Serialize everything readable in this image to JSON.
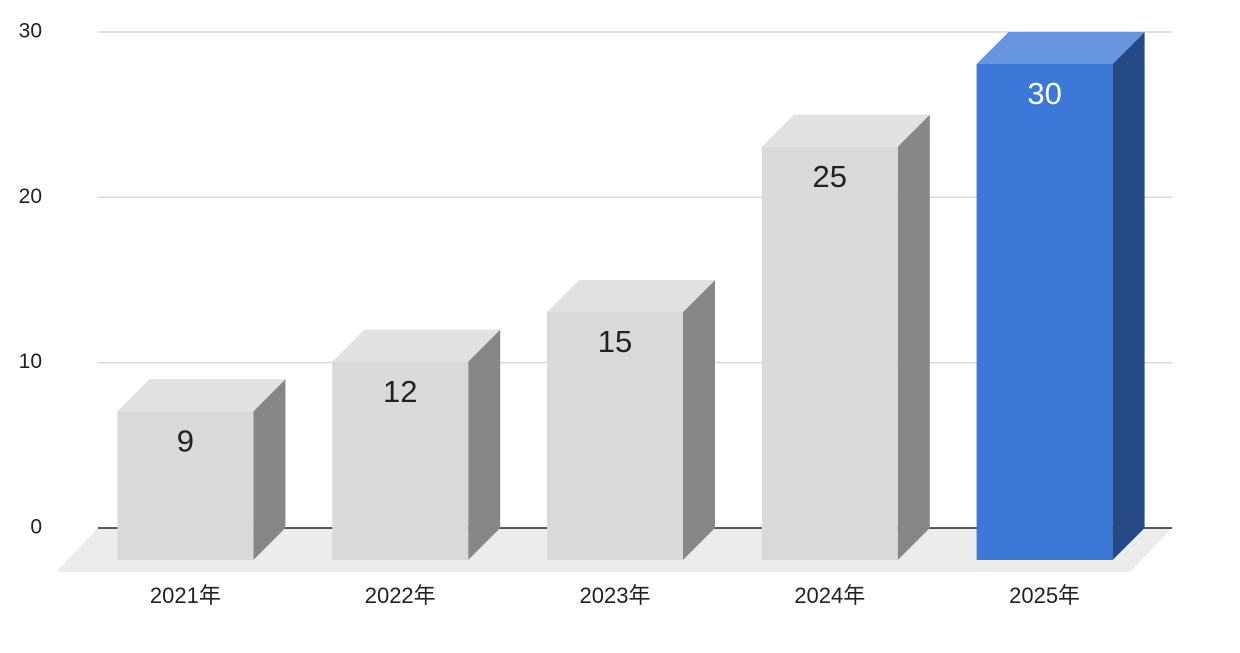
{
  "chart_data": {
    "type": "bar3d",
    "categories": [
      "2021年",
      "2022年",
      "2023年",
      "2024年",
      "2025年"
    ],
    "values": [
      9,
      12,
      15,
      25,
      30
    ],
    "colors": [
      "#d9d9d9",
      "#d9d9d9",
      "#d9d9d9",
      "#d9d9d9",
      "#3c78d8"
    ],
    "ylim": [
      0,
      30
    ],
    "yticks": [
      0,
      10,
      20,
      30
    ],
    "grid": true
  }
}
